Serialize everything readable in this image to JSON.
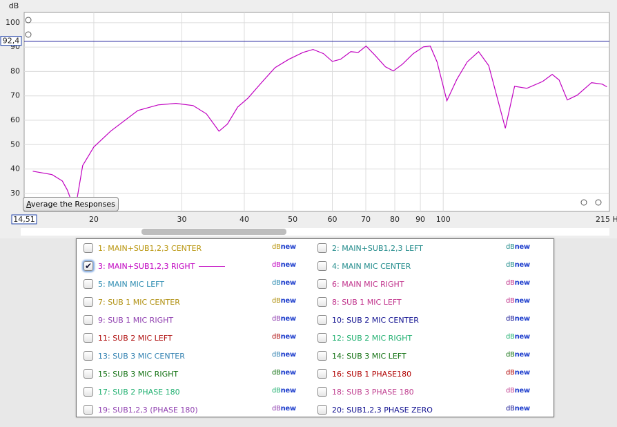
{
  "chart_data": {
    "type": "line",
    "ylabel": "dB",
    "x_scale": "log",
    "grid": true,
    "xlim": [
      14.51,
      215
    ],
    "ylim": [
      22.6,
      104.2
    ],
    "xticks": [
      {
        "value": 14.51,
        "label": "14,51"
      },
      20,
      30,
      40,
      50,
      60,
      70,
      80,
      90,
      100,
      {
        "value": 215,
        "label": "215 H"
      }
    ],
    "yticks": [
      30,
      40,
      50,
      60,
      70,
      80,
      90,
      100
    ],
    "cursor": {
      "value": 92.4,
      "label": "92,4"
    },
    "series": [
      {
        "color": "#c000c0",
        "x": [
          15.1,
          16.5,
          17.3,
          17.7,
          18.0,
          18.5,
          19.0,
          20,
          21.6,
          24.5,
          26.9,
          29.2,
          31.6,
          33.6,
          35.6,
          37.0,
          38.8,
          40.7,
          43.3,
          46.1,
          49.1,
          52.4,
          54.9,
          57.6,
          60.0,
          62.3,
          65.3,
          67.6,
          70.1,
          73.0,
          76.6,
          79.5,
          82.9,
          87.1,
          91.3,
          94.2,
          97.2,
          101.7,
          106.5,
          111.7,
          117.7,
          123.3,
          133.1,
          138.9,
          147.0,
          158.1,
          165.2,
          170.5,
          177.1,
          185.5,
          198.0,
          208.1,
          212.5
        ],
        "values": [
          39.1,
          37.7,
          35.1,
          31.4,
          27.4,
          27.4,
          41.4,
          49.0,
          55.5,
          64.0,
          66.3,
          66.9,
          66.0,
          62.6,
          55.5,
          58.4,
          65.4,
          69.1,
          75.4,
          81.6,
          85.0,
          87.8,
          89.0,
          87.3,
          84.1,
          85.0,
          88.1,
          87.8,
          90.4,
          86.7,
          81.9,
          80.2,
          83.0,
          87.3,
          90.1,
          90.4,
          83.9,
          68.0,
          76.8,
          83.9,
          88.1,
          82.4,
          56.7,
          73.9,
          73.1,
          75.9,
          78.8,
          76.5,
          68.3,
          70.3,
          75.4,
          74.8,
          73.7
        ]
      }
    ]
  },
  "button": "Average the Responses",
  "measurements": {
    "icon_db": "dB",
    "icon_new": "new",
    "items": [
      {
        "label": "1: MAIN+SUB1,2,3 CENTER",
        "color": "#b8940a",
        "checked": false
      },
      {
        "label": "2: MAIN+SUB1,2,3 LEFT",
        "color": "#208a8a",
        "checked": false
      },
      {
        "label": "3: MAIN+SUB1,2,3 RIGHT",
        "color": "#c000c0",
        "checked": true
      },
      {
        "label": "4: MAIN MIC CENTER",
        "color": "#1e8a8a",
        "checked": false
      },
      {
        "label": "5: MAIN MIC LEFT",
        "color": "#2a8ab0",
        "checked": false
      },
      {
        "label": "6: MAIN MIC RIGHT",
        "color": "#c0308a",
        "checked": false
      },
      {
        "label": "7: SUB 1 MIC CENTER",
        "color": "#b09010",
        "checked": false
      },
      {
        "label": "8: SUB 1 MIC LEFT",
        "color": "#c0308a",
        "checked": false
      },
      {
        "label": "9: SUB 1 MIC RIGHT",
        "color": "#9040b0",
        "checked": false
      },
      {
        "label": "10: SUB 2 MIC CENTER",
        "color": "#101090",
        "checked": false
      },
      {
        "label": "11: SUB 2 MIC LEFT",
        "color": "#b01010",
        "checked": false
      },
      {
        "label": "12: SUB 2 MIC RIGHT",
        "color": "#20b070",
        "checked": false
      },
      {
        "label": "13: SUB 3 MIC CENTER",
        "color": "#3080b0",
        "checked": false
      },
      {
        "label": "14: SUB 3 MIC LEFT",
        "color": "#107010",
        "checked": false
      },
      {
        "label": "15: SUB 3 MIC RIGHT",
        "color": "#107010",
        "checked": false
      },
      {
        "label": "16: SUB 1 PHASE180",
        "color": "#b00000",
        "checked": false
      },
      {
        "label": "17: SUB 2 PHASE 180",
        "color": "#20b070",
        "checked": false
      },
      {
        "label": "18: SUB 3 PHASE 180",
        "color": "#c04090",
        "checked": false
      },
      {
        "label": "19: SUB1,2,3 (PHASE 180)",
        "color": "#9040b0",
        "checked": false
      },
      {
        "label": "20: SUB1,2,3 PHASE ZERO",
        "color": "#101090",
        "checked": false
      }
    ]
  }
}
